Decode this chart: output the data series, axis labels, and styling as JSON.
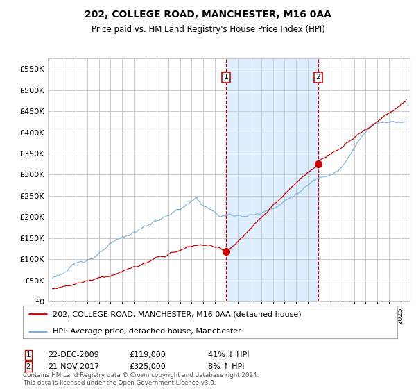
{
  "title": "202, COLLEGE ROAD, MANCHESTER, M16 0AA",
  "subtitle": "Price paid vs. HM Land Registry's House Price Index (HPI)",
  "ylim": [
    0,
    575000
  ],
  "yticks": [
    0,
    50000,
    100000,
    150000,
    200000,
    250000,
    300000,
    350000,
    400000,
    450000,
    500000,
    550000
  ],
  "ytick_labels": [
    "£0",
    "£50K",
    "£100K",
    "£150K",
    "£200K",
    "£250K",
    "£300K",
    "£350K",
    "£400K",
    "£450K",
    "£500K",
    "£550K"
  ],
  "sale1_date": 2009.95,
  "sale1_price": 119000,
  "sale2_date": 2017.9,
  "sale2_price": 325000,
  "legend_line1": "202, COLLEGE ROAD, MANCHESTER, M16 0AA (detached house)",
  "legend_line2": "HPI: Average price, detached house, Manchester",
  "table_row1": [
    "1",
    "22-DEC-2009",
    "£119,000",
    "41% ↓ HPI"
  ],
  "table_row2": [
    "2",
    "21-NOV-2017",
    "£325,000",
    "8% ↑ HPI"
  ],
  "footer": "Contains HM Land Registry data © Crown copyright and database right 2024.\nThis data is licensed under the Open Government Licence v3.0.",
  "house_color": "#cc0000",
  "hpi_color": "#7aaadd",
  "shade_color": "#ddeeff",
  "grid_color": "#cccccc",
  "bg_color": "#ffffff"
}
